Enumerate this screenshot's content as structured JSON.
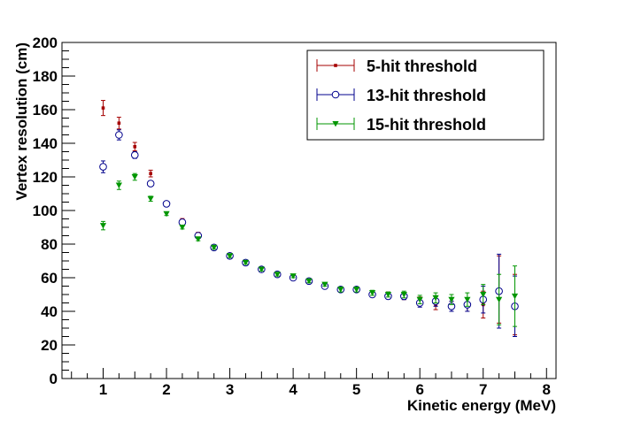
{
  "chart_data": {
    "type": "scatter",
    "title": "",
    "xlabel": "Kinetic energy (MeV)",
    "ylabel": "Vertex resolution (cm)",
    "xlim": [
      0.35,
      8.15
    ],
    "ylim": [
      0,
      200
    ],
    "x_ticks": [
      "1",
      "2",
      "3",
      "4",
      "5",
      "6",
      "7",
      "8"
    ],
    "y_ticks": [
      "0",
      "20",
      "40",
      "60",
      "80",
      "100",
      "120",
      "140",
      "160",
      "180",
      "200"
    ],
    "grid": false,
    "legend_position": "top-right",
    "series": [
      {
        "name": "5-hit threshold",
        "color": "#a50000",
        "marker": "dot",
        "points": [
          {
            "x": 1.0,
            "y": 161,
            "err": 4.5
          },
          {
            "x": 1.25,
            "y": 152,
            "err": 3.5
          },
          {
            "x": 1.5,
            "y": 138,
            "err": 2.5
          },
          {
            "x": 1.75,
            "y": 122,
            "err": 2
          },
          {
            "x": 2.0,
            "y": 104,
            "err": 1.2
          },
          {
            "x": 2.25,
            "y": 94,
            "err": 1.2
          },
          {
            "x": 2.5,
            "y": 86,
            "err": 1
          },
          {
            "x": 2.75,
            "y": 78,
            "err": 1
          },
          {
            "x": 3.0,
            "y": 73,
            "err": 1
          },
          {
            "x": 3.25,
            "y": 69,
            "err": 1
          },
          {
            "x": 3.5,
            "y": 65,
            "err": 1
          },
          {
            "x": 3.75,
            "y": 62,
            "err": 1
          },
          {
            "x": 4.0,
            "y": 61,
            "err": 1
          },
          {
            "x": 4.25,
            "y": 58,
            "err": 1
          },
          {
            "x": 4.5,
            "y": 55,
            "err": 1
          },
          {
            "x": 4.75,
            "y": 53,
            "err": 1.5
          },
          {
            "x": 5.0,
            "y": 53,
            "err": 1.5
          },
          {
            "x": 5.25,
            "y": 50,
            "err": 1.5
          },
          {
            "x": 5.5,
            "y": 50,
            "err": 1.5
          },
          {
            "x": 5.75,
            "y": 49,
            "err": 2
          },
          {
            "x": 6.0,
            "y": 46,
            "err": 2.5
          },
          {
            "x": 6.25,
            "y": 44,
            "err": 3
          },
          {
            "x": 6.5,
            "y": 43,
            "err": 3
          },
          {
            "x": 6.75,
            "y": 44,
            "err": 4
          },
          {
            "x": 7.0,
            "y": 44,
            "err": 8
          },
          {
            "x": 7.25,
            "y": 53,
            "err": 20
          },
          {
            "x": 7.5,
            "y": 44,
            "err": 18
          }
        ]
      },
      {
        "name": "13-hit threshold",
        "color": "#00008c",
        "marker": "open-circle",
        "points": [
          {
            "x": 1.0,
            "y": 126,
            "err": 3.5
          },
          {
            "x": 1.25,
            "y": 145,
            "err": 3
          },
          {
            "x": 1.5,
            "y": 133,
            "err": 2
          },
          {
            "x": 1.75,
            "y": 116,
            "err": 1.5
          },
          {
            "x": 2.0,
            "y": 104,
            "err": 1.2
          },
          {
            "x": 2.25,
            "y": 93,
            "err": 1
          },
          {
            "x": 2.5,
            "y": 85,
            "err": 1
          },
          {
            "x": 2.75,
            "y": 78,
            "err": 1
          },
          {
            "x": 3.0,
            "y": 73,
            "err": 1
          },
          {
            "x": 3.25,
            "y": 69,
            "err": 1
          },
          {
            "x": 3.5,
            "y": 65,
            "err": 1
          },
          {
            "x": 3.75,
            "y": 62,
            "err": 1
          },
          {
            "x": 4.0,
            "y": 60,
            "err": 1
          },
          {
            "x": 4.25,
            "y": 58,
            "err": 1
          },
          {
            "x": 4.5,
            "y": 55,
            "err": 1
          },
          {
            "x": 4.75,
            "y": 53,
            "err": 1.5
          },
          {
            "x": 5.0,
            "y": 53,
            "err": 1.5
          },
          {
            "x": 5.25,
            "y": 50,
            "err": 1.5
          },
          {
            "x": 5.5,
            "y": 49,
            "err": 1.5
          },
          {
            "x": 5.75,
            "y": 49,
            "err": 2
          },
          {
            "x": 6.0,
            "y": 45,
            "err": 2.5
          },
          {
            "x": 6.25,
            "y": 46,
            "err": 3
          },
          {
            "x": 6.5,
            "y": 43,
            "err": 3
          },
          {
            "x": 6.75,
            "y": 44,
            "err": 4
          },
          {
            "x": 7.0,
            "y": 47,
            "err": 8
          },
          {
            "x": 7.25,
            "y": 52,
            "err": 22
          },
          {
            "x": 7.5,
            "y": 43,
            "err": 18
          }
        ]
      },
      {
        "name": "15-hit threshold",
        "color": "#009600",
        "marker": "triangle-down",
        "points": [
          {
            "x": 1.0,
            "y": 91,
            "err": 2.5
          },
          {
            "x": 1.25,
            "y": 115,
            "err": 2.5
          },
          {
            "x": 1.5,
            "y": 120,
            "err": 2
          },
          {
            "x": 1.75,
            "y": 107,
            "err": 1.5
          },
          {
            "x": 2.0,
            "y": 98,
            "err": 1
          },
          {
            "x": 2.25,
            "y": 90,
            "err": 1
          },
          {
            "x": 2.5,
            "y": 83,
            "err": 1
          },
          {
            "x": 2.75,
            "y": 78,
            "err": 1
          },
          {
            "x": 3.0,
            "y": 73,
            "err": 1
          },
          {
            "x": 3.25,
            "y": 69,
            "err": 1
          },
          {
            "x": 3.5,
            "y": 65,
            "err": 1
          },
          {
            "x": 3.75,
            "y": 62,
            "err": 1
          },
          {
            "x": 4.0,
            "y": 61,
            "err": 1
          },
          {
            "x": 4.25,
            "y": 58,
            "err": 1
          },
          {
            "x": 4.5,
            "y": 56,
            "err": 1
          },
          {
            "x": 4.75,
            "y": 53,
            "err": 1.5
          },
          {
            "x": 5.0,
            "y": 53,
            "err": 1.5
          },
          {
            "x": 5.25,
            "y": 51,
            "err": 1.5
          },
          {
            "x": 5.5,
            "y": 50,
            "err": 1.5
          },
          {
            "x": 5.75,
            "y": 50,
            "err": 2
          },
          {
            "x": 6.0,
            "y": 47,
            "err": 2.5
          },
          {
            "x": 6.25,
            "y": 48,
            "err": 3
          },
          {
            "x": 6.5,
            "y": 47,
            "err": 3
          },
          {
            "x": 6.75,
            "y": 47,
            "err": 4
          },
          {
            "x": 7.0,
            "y": 50,
            "err": 6
          },
          {
            "x": 7.25,
            "y": 47,
            "err": 15
          },
          {
            "x": 7.5,
            "y": 49,
            "err": 18
          }
        ]
      }
    ]
  }
}
